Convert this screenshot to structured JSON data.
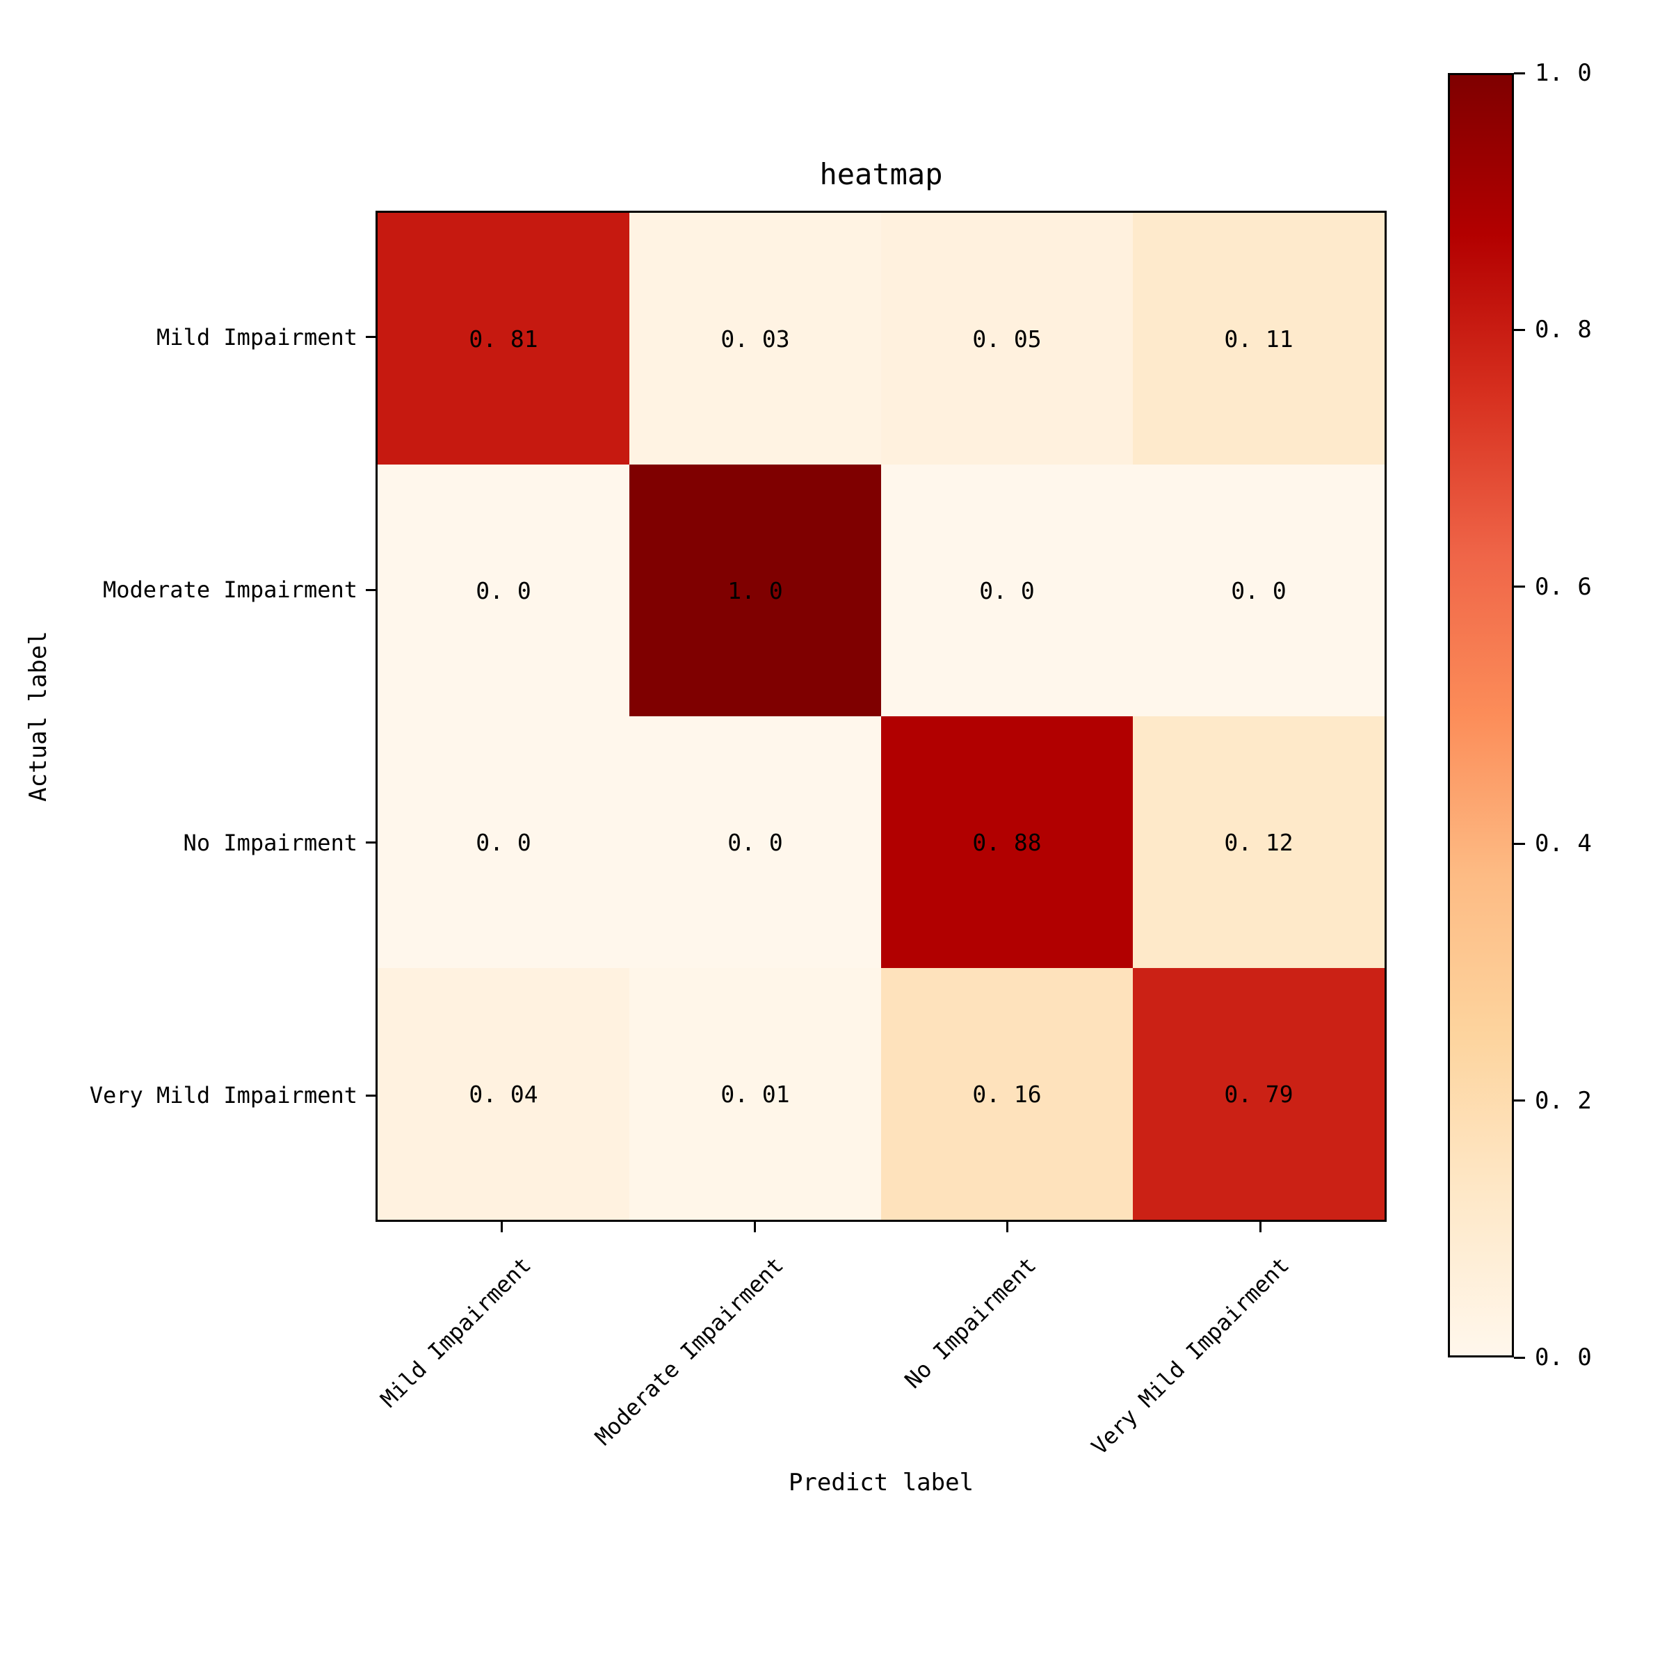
{
  "figure": {
    "title": "heatmap"
  },
  "chart_data": {
    "type": "heatmap",
    "title": "heatmap",
    "xlabel": "Predict label",
    "ylabel": "Actual label",
    "x_categories": [
      "Mild Impairment",
      "Moderate Impairment",
      "No Impairment",
      "Very Mild Impairment"
    ],
    "y_categories": [
      "Mild Impairment",
      "Moderate Impairment",
      "No Impairment",
      "Very Mild Impairment"
    ],
    "values": [
      [
        0.81,
        0.03,
        0.05,
        0.11
      ],
      [
        0.0,
        1.0,
        0.0,
        0.0
      ],
      [
        0.0,
        0.0,
        0.88,
        0.12
      ],
      [
        0.04,
        0.01,
        0.16,
        0.79
      ]
    ],
    "cell_labels": [
      [
        "0.81",
        "0.03",
        "0.05",
        "0.11"
      ],
      [
        "0.0",
        "1.0",
        "0.0",
        "0.0"
      ],
      [
        "0.0",
        "0.0",
        "0.88",
        "0.12"
      ],
      [
        "0.04",
        "0.01",
        "0.16",
        "0.79"
      ]
    ],
    "value_range": [
      0,
      1
    ],
    "colorbar_ticks": [
      "1.0",
      "0.8",
      "0.6",
      "0.4",
      "0.2",
      "0.0"
    ],
    "colormap": {
      "name": "OrRd",
      "stops": [
        [
          0.0,
          "#fff7ec"
        ],
        [
          0.125,
          "#fee8c8"
        ],
        [
          0.25,
          "#fdd49e"
        ],
        [
          0.375,
          "#fdbb84"
        ],
        [
          0.5,
          "#fc8d59"
        ],
        [
          0.625,
          "#ef6548"
        ],
        [
          0.75,
          "#d7301f"
        ],
        [
          0.875,
          "#b30000"
        ],
        [
          1.0,
          "#7f0000"
        ]
      ]
    },
    "legend_position": "right-colorbar",
    "grid": false
  },
  "colors": {
    "background": "#ffffff",
    "spine": "#000000",
    "text": "#000000"
  }
}
